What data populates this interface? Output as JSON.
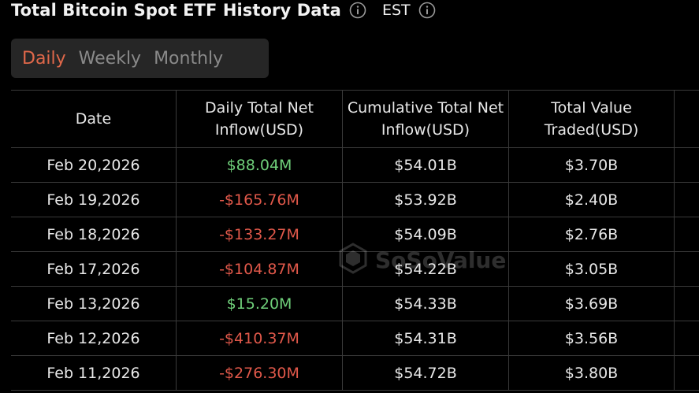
{
  "header": {
    "title": "Total Bitcoin Spot ETF History Data",
    "timezone": "EST",
    "info_icon": "info-circle-icon"
  },
  "tabs": [
    {
      "label": "Daily",
      "active": true
    },
    {
      "label": "Weekly",
      "active": false
    },
    {
      "label": "Monthly",
      "active": false
    }
  ],
  "table": {
    "columns": [
      "Date",
      "Daily Total Net Inflow(USD)",
      "Cumulative Total Net Inflow(USD)",
      "Total Value Traded(USD)"
    ],
    "rows": [
      {
        "date": "Feb 20,2026",
        "daily": "$88.04M",
        "daily_sign": "pos",
        "cumulative": "$54.01B",
        "traded": "$3.70B"
      },
      {
        "date": "Feb 19,2026",
        "daily": "-$165.76M",
        "daily_sign": "neg",
        "cumulative": "$53.92B",
        "traded": "$2.40B"
      },
      {
        "date": "Feb 18,2026",
        "daily": "-$133.27M",
        "daily_sign": "neg",
        "cumulative": "$54.09B",
        "traded": "$2.76B"
      },
      {
        "date": "Feb 17,2026",
        "daily": "-$104.87M",
        "daily_sign": "neg",
        "cumulative": "$54.22B",
        "traded": "$3.05B"
      },
      {
        "date": "Feb 13,2026",
        "daily": "$15.20M",
        "daily_sign": "pos",
        "cumulative": "$54.33B",
        "traded": "$3.69B"
      },
      {
        "date": "Feb 12,2026",
        "daily": "-$410.37M",
        "daily_sign": "neg",
        "cumulative": "$54.31B",
        "traded": "$3.56B"
      },
      {
        "date": "Feb 11,2026",
        "daily": "-$276.30M",
        "daily_sign": "neg",
        "cumulative": "$54.72B",
        "traded": "$3.80B"
      }
    ]
  },
  "watermark": {
    "text": "SoSoValue",
    "icon": "sosovalue-logo-icon"
  },
  "colors": {
    "background": "#000000",
    "tab_active": "#e0684a",
    "tab_inactive": "#8a8a8a",
    "positive": "#6fcf7a",
    "negative": "#e0584a",
    "grid": "#3a3a3a"
  }
}
